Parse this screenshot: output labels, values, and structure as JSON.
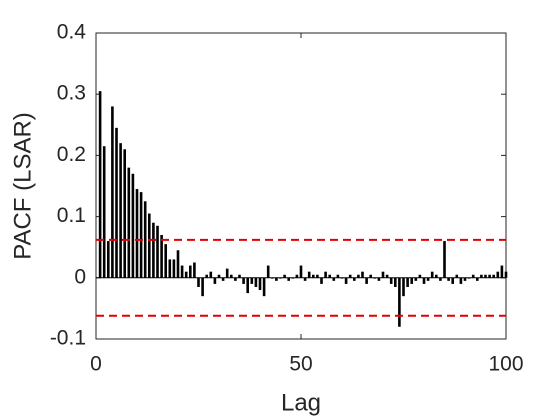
{
  "chart_data": {
    "type": "bar",
    "xlabel": "Lag",
    "ylabel": "PACF (LSAR)",
    "x": [
      1,
      2,
      3,
      4,
      5,
      6,
      7,
      8,
      9,
      10,
      11,
      12,
      13,
      14,
      15,
      16,
      17,
      18,
      19,
      20,
      21,
      22,
      23,
      24,
      25,
      26,
      27,
      28,
      29,
      30,
      31,
      32,
      33,
      34,
      35,
      36,
      37,
      38,
      39,
      40,
      41,
      42,
      43,
      44,
      45,
      46,
      47,
      48,
      49,
      50,
      51,
      52,
      53,
      54,
      55,
      56,
      57,
      58,
      59,
      60,
      61,
      62,
      63,
      64,
      65,
      66,
      67,
      68,
      69,
      70,
      71,
      72,
      73,
      74,
      75,
      76,
      77,
      78,
      79,
      80,
      81,
      82,
      83,
      84,
      85,
      86,
      87,
      88,
      89,
      90,
      91,
      92,
      93,
      94,
      95,
      96,
      97,
      98,
      99,
      100
    ],
    "values": [
      0.305,
      0.215,
      0.06,
      0.28,
      0.245,
      0.22,
      0.21,
      0.18,
      0.17,
      0.145,
      0.14,
      0.125,
      0.105,
      0.09,
      0.085,
      0.07,
      0.055,
      0.03,
      0.03,
      0.045,
      0.02,
      0.01,
      0.02,
      0.025,
      -0.015,
      -0.03,
      0.005,
      0.01,
      -0.01,
      0.005,
      -0.005,
      0.015,
      0.005,
      -0.005,
      0.005,
      -0.01,
      -0.025,
      -0.01,
      -0.015,
      -0.02,
      -0.03,
      0.02,
      0.0,
      -0.005,
      0.0,
      0.005,
      -0.005,
      0.0,
      0.005,
      0.02,
      -0.005,
      0.01,
      0.005,
      0.005,
      -0.01,
      0.01,
      0.005,
      -0.005,
      0.005,
      0.0,
      -0.01,
      0.005,
      -0.005,
      0.005,
      0.01,
      -0.01,
      0.005,
      0.0,
      -0.005,
      0.01,
      0.005,
      -0.01,
      -0.015,
      -0.08,
      -0.03,
      -0.015,
      -0.01,
      -0.005,
      0.005,
      -0.01,
      -0.005,
      0.01,
      0.005,
      -0.005,
      0.06,
      -0.005,
      -0.01,
      0.005,
      -0.01,
      -0.005,
      0.0,
      0.005,
      -0.005,
      0.005,
      0.005,
      0.005,
      0.005,
      0.01,
      0.02,
      0.01
    ],
    "color": "#000000",
    "confidence_bounds": [
      0.062,
      -0.062
    ],
    "bound_color": "#e00000",
    "xlim": [
      0,
      100
    ],
    "xticks": [
      0,
      50,
      100
    ],
    "ylim": [
      -0.1,
      0.4
    ],
    "yticks": [
      -0.1,
      0,
      0.1,
      0.2,
      0.3,
      0.4
    ]
  }
}
